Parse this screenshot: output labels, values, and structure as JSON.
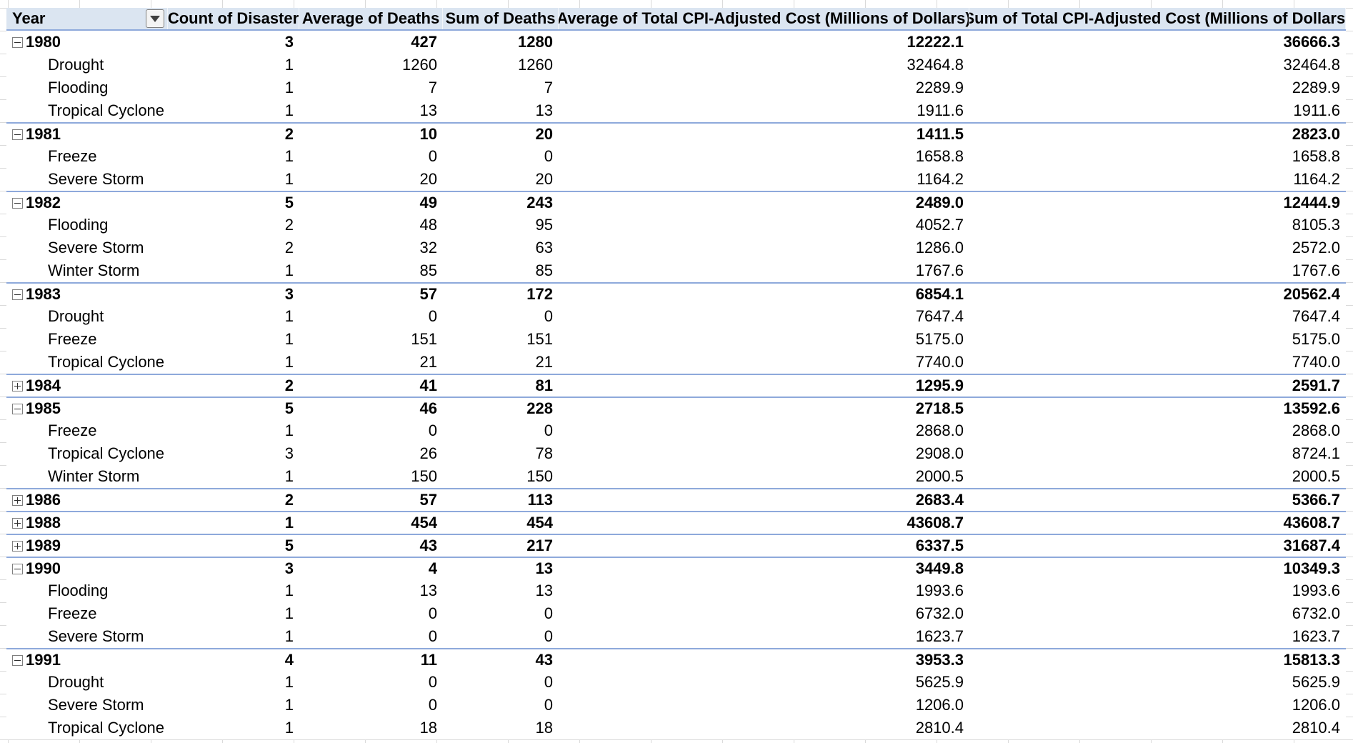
{
  "headers": {
    "year": "Year",
    "count": "Count of Disaster",
    "avg_deaths": "Average of Deaths",
    "sum_deaths": "Sum of Deaths",
    "avg_cost": "Average of Total CPI-Adjusted Cost (Millions of Dollars)",
    "sum_cost": "Sum of Total CPI-Adjusted Cost (Millions of Dollars)"
  },
  "filter_icon": "dropdown-arrow-icon",
  "rows": [
    {
      "level": "year",
      "expanded": true,
      "label": "1980",
      "count": "3",
      "avg_deaths": "427",
      "sum_deaths": "1280",
      "avg_cost": "12222.1",
      "sum_cost": "36666.3"
    },
    {
      "level": "item",
      "label": "Drought",
      "count": "1",
      "avg_deaths": "1260",
      "sum_deaths": "1260",
      "avg_cost": "32464.8",
      "sum_cost": "32464.8"
    },
    {
      "level": "item",
      "label": "Flooding",
      "count": "1",
      "avg_deaths": "7",
      "sum_deaths": "7",
      "avg_cost": "2289.9",
      "sum_cost": "2289.9"
    },
    {
      "level": "item",
      "label": "Tropical Cyclone",
      "count": "1",
      "avg_deaths": "13",
      "sum_deaths": "13",
      "avg_cost": "1911.6",
      "sum_cost": "1911.6"
    },
    {
      "level": "year",
      "expanded": true,
      "label": "1981",
      "count": "2",
      "avg_deaths": "10",
      "sum_deaths": "20",
      "avg_cost": "1411.5",
      "sum_cost": "2823.0"
    },
    {
      "level": "item",
      "label": "Freeze",
      "count": "1",
      "avg_deaths": "0",
      "sum_deaths": "0",
      "avg_cost": "1658.8",
      "sum_cost": "1658.8"
    },
    {
      "level": "item",
      "label": "Severe Storm",
      "count": "1",
      "avg_deaths": "20",
      "sum_deaths": "20",
      "avg_cost": "1164.2",
      "sum_cost": "1164.2"
    },
    {
      "level": "year",
      "expanded": true,
      "label": "1982",
      "count": "5",
      "avg_deaths": "49",
      "sum_deaths": "243",
      "avg_cost": "2489.0",
      "sum_cost": "12444.9"
    },
    {
      "level": "item",
      "label": "Flooding",
      "count": "2",
      "avg_deaths": "48",
      "sum_deaths": "95",
      "avg_cost": "4052.7",
      "sum_cost": "8105.3"
    },
    {
      "level": "item",
      "label": "Severe Storm",
      "count": "2",
      "avg_deaths": "32",
      "sum_deaths": "63",
      "avg_cost": "1286.0",
      "sum_cost": "2572.0"
    },
    {
      "level": "item",
      "label": "Winter Storm",
      "count": "1",
      "avg_deaths": "85",
      "sum_deaths": "85",
      "avg_cost": "1767.6",
      "sum_cost": "1767.6"
    },
    {
      "level": "year",
      "expanded": true,
      "label": "1983",
      "count": "3",
      "avg_deaths": "57",
      "sum_deaths": "172",
      "avg_cost": "6854.1",
      "sum_cost": "20562.4"
    },
    {
      "level": "item",
      "label": "Drought",
      "count": "1",
      "avg_deaths": "0",
      "sum_deaths": "0",
      "avg_cost": "7647.4",
      "sum_cost": "7647.4"
    },
    {
      "level": "item",
      "label": "Freeze",
      "count": "1",
      "avg_deaths": "151",
      "sum_deaths": "151",
      "avg_cost": "5175.0",
      "sum_cost": "5175.0"
    },
    {
      "level": "item",
      "label": "Tropical Cyclone",
      "count": "1",
      "avg_deaths": "21",
      "sum_deaths": "21",
      "avg_cost": "7740.0",
      "sum_cost": "7740.0"
    },
    {
      "level": "year",
      "expanded": false,
      "label": "1984",
      "count": "2",
      "avg_deaths": "41",
      "sum_deaths": "81",
      "avg_cost": "1295.9",
      "sum_cost": "2591.7"
    },
    {
      "level": "year",
      "expanded": true,
      "label": "1985",
      "count": "5",
      "avg_deaths": "46",
      "sum_deaths": "228",
      "avg_cost": "2718.5",
      "sum_cost": "13592.6"
    },
    {
      "level": "item",
      "label": "Freeze",
      "count": "1",
      "avg_deaths": "0",
      "sum_deaths": "0",
      "avg_cost": "2868.0",
      "sum_cost": "2868.0"
    },
    {
      "level": "item",
      "label": "Tropical Cyclone",
      "count": "3",
      "avg_deaths": "26",
      "sum_deaths": "78",
      "avg_cost": "2908.0",
      "sum_cost": "8724.1"
    },
    {
      "level": "item",
      "label": "Winter Storm",
      "count": "1",
      "avg_deaths": "150",
      "sum_deaths": "150",
      "avg_cost": "2000.5",
      "sum_cost": "2000.5"
    },
    {
      "level": "year",
      "expanded": false,
      "label": "1986",
      "count": "2",
      "avg_deaths": "57",
      "sum_deaths": "113",
      "avg_cost": "2683.4",
      "sum_cost": "5366.7"
    },
    {
      "level": "year",
      "expanded": false,
      "label": "1988",
      "count": "1",
      "avg_deaths": "454",
      "sum_deaths": "454",
      "avg_cost": "43608.7",
      "sum_cost": "43608.7"
    },
    {
      "level": "year",
      "expanded": false,
      "label": "1989",
      "count": "5",
      "avg_deaths": "43",
      "sum_deaths": "217",
      "avg_cost": "6337.5",
      "sum_cost": "31687.4"
    },
    {
      "level": "year",
      "expanded": true,
      "label": "1990",
      "count": "3",
      "avg_deaths": "4",
      "sum_deaths": "13",
      "avg_cost": "3449.8",
      "sum_cost": "10349.3"
    },
    {
      "level": "item",
      "label": "Flooding",
      "count": "1",
      "avg_deaths": "13",
      "sum_deaths": "13",
      "avg_cost": "1993.6",
      "sum_cost": "1993.6"
    },
    {
      "level": "item",
      "label": "Freeze",
      "count": "1",
      "avg_deaths": "0",
      "sum_deaths": "0",
      "avg_cost": "6732.0",
      "sum_cost": "6732.0"
    },
    {
      "level": "item",
      "label": "Severe Storm",
      "count": "1",
      "avg_deaths": "0",
      "sum_deaths": "0",
      "avg_cost": "1623.7",
      "sum_cost": "1623.7"
    },
    {
      "level": "year",
      "expanded": true,
      "label": "1991",
      "count": "4",
      "avg_deaths": "11",
      "sum_deaths": "43",
      "avg_cost": "3953.3",
      "sum_cost": "15813.3"
    },
    {
      "level": "item",
      "label": "Drought",
      "count": "1",
      "avg_deaths": "0",
      "sum_deaths": "0",
      "avg_cost": "5625.9",
      "sum_cost": "5625.9"
    },
    {
      "level": "item",
      "label": "Severe Storm",
      "count": "1",
      "avg_deaths": "0",
      "sum_deaths": "0",
      "avg_cost": "1206.0",
      "sum_cost": "1206.0"
    },
    {
      "level": "item",
      "label": "Tropical Cyclone",
      "count": "1",
      "avg_deaths": "18",
      "sum_deaths": "18",
      "avg_cost": "2810.4",
      "sum_cost": "2810.4"
    }
  ]
}
